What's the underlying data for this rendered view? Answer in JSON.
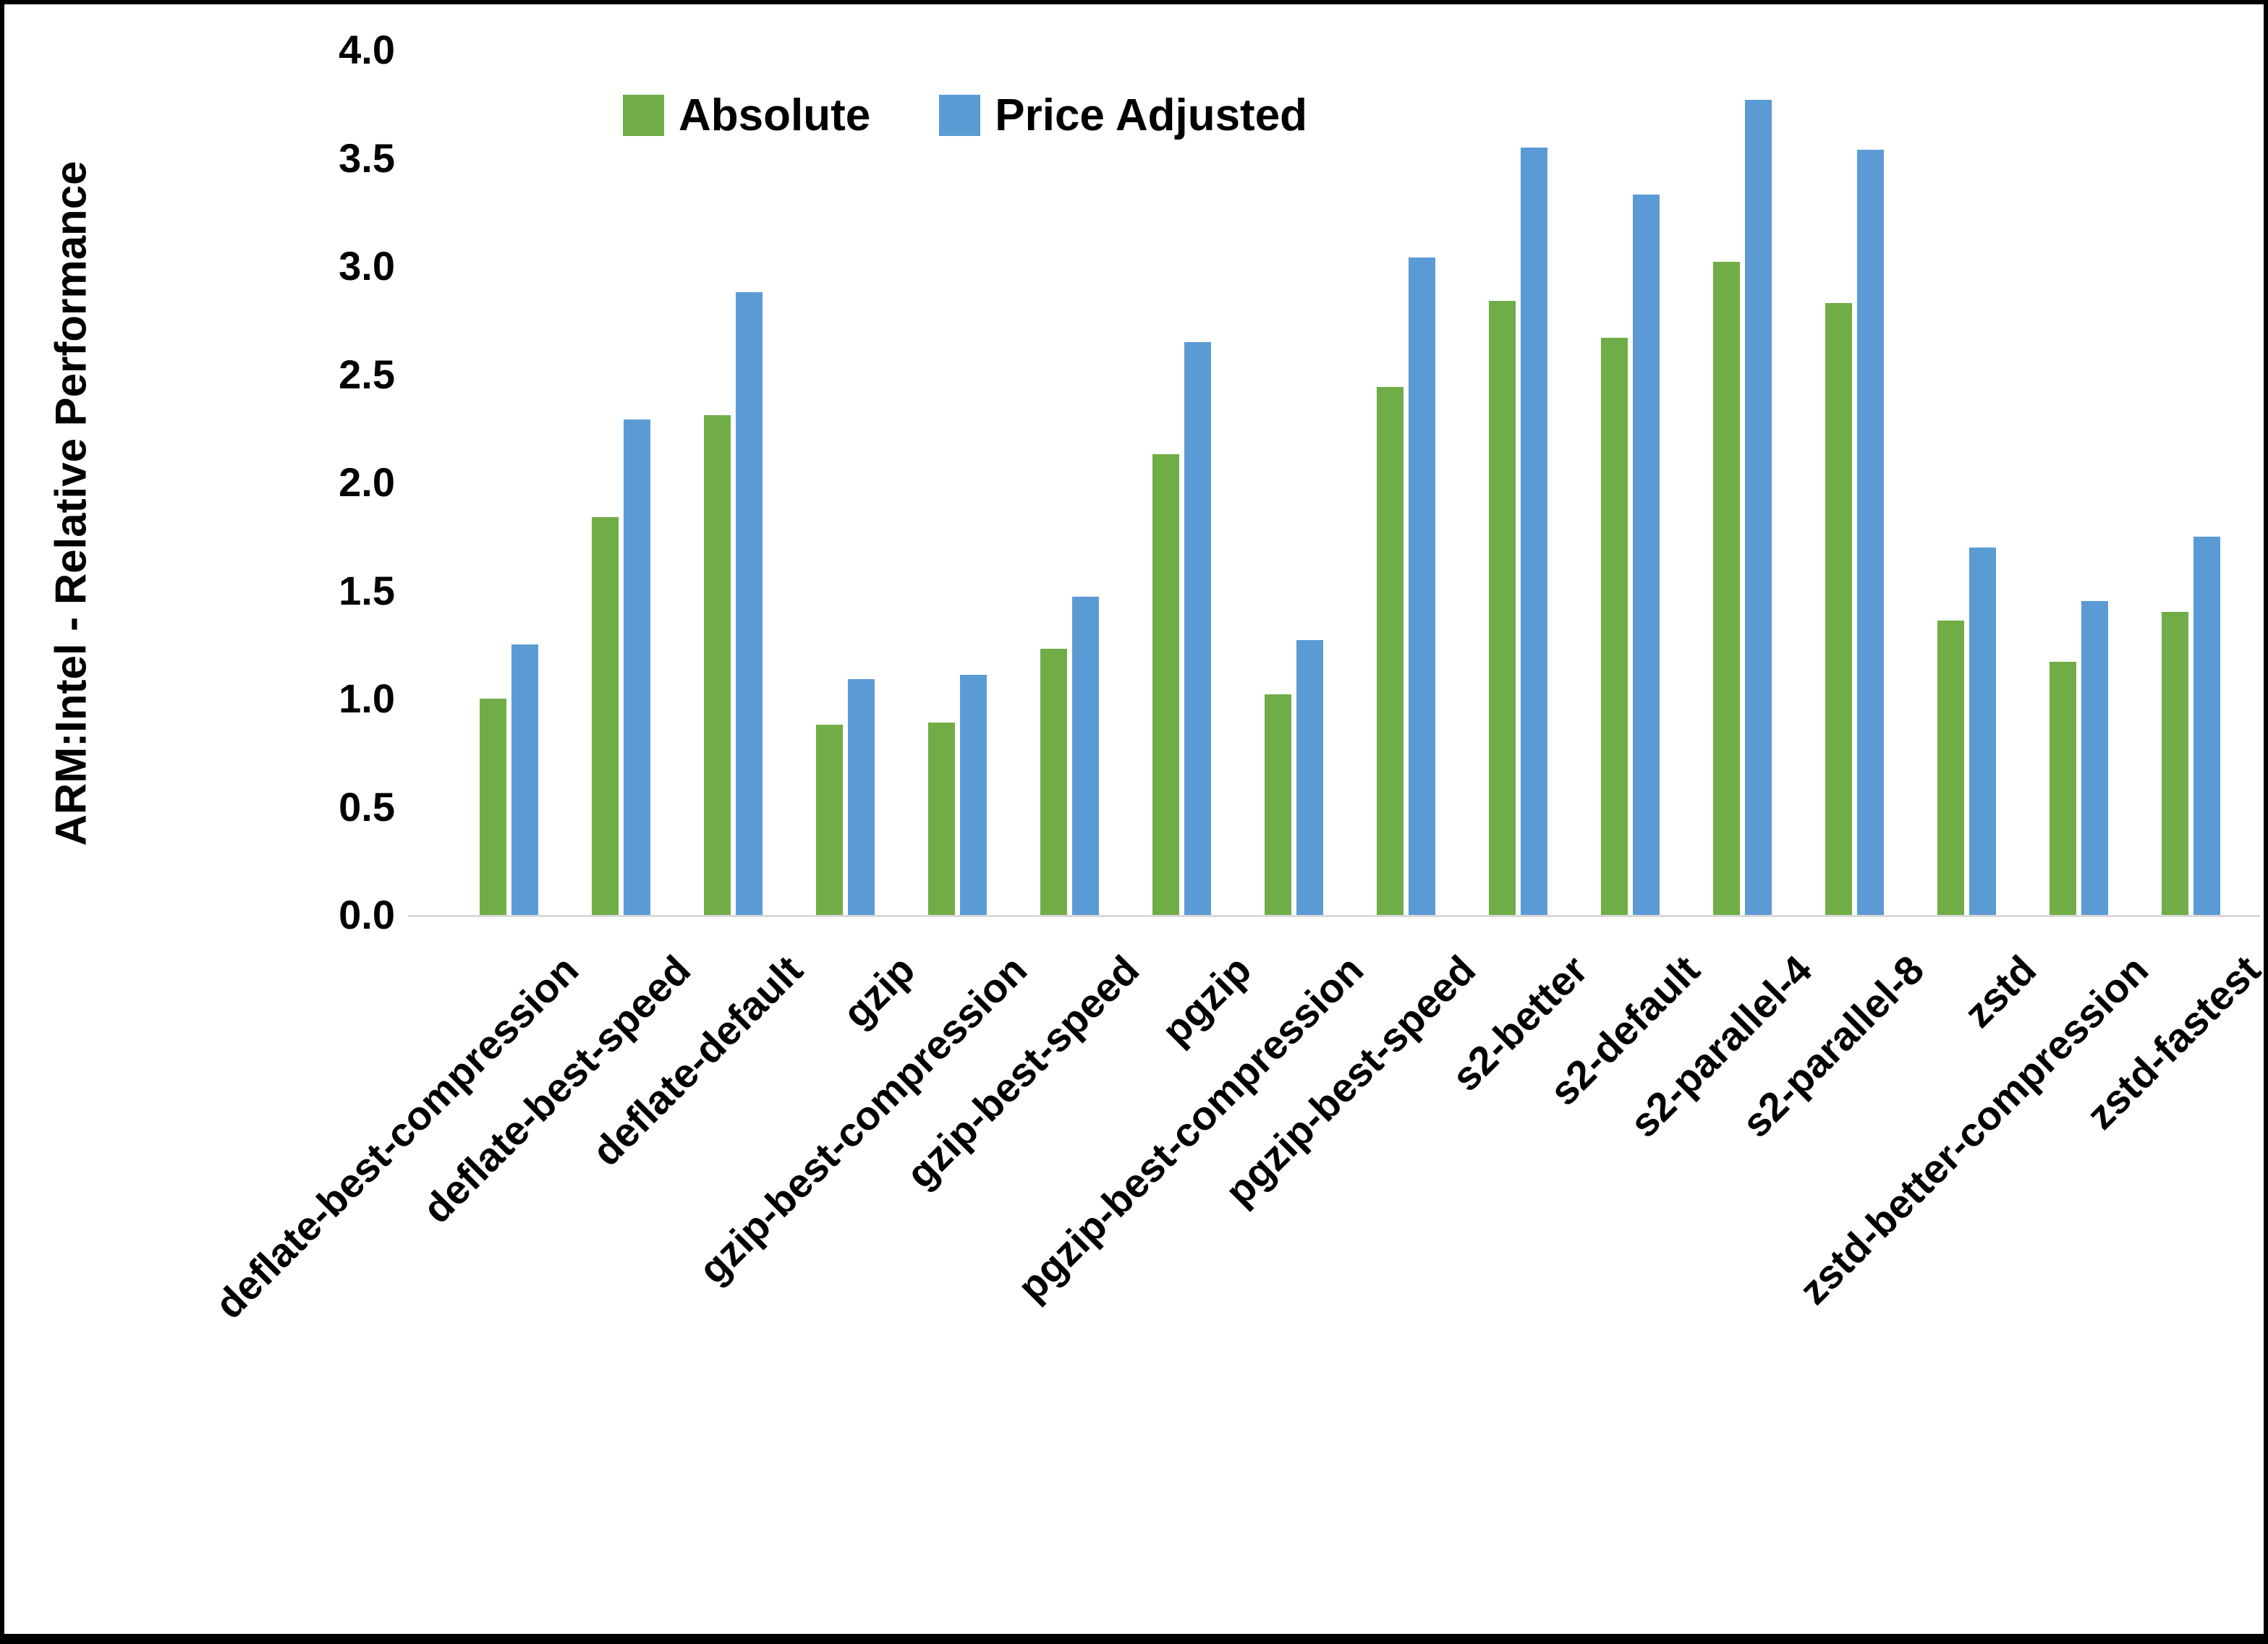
{
  "colors": {
    "absolute_series": "#70AD47",
    "price_adjusted_series": "#5B9BD5",
    "axis_line": "#D9D9D9",
    "text": "#000000",
    "background": "#FFFFFF",
    "frame_border": "#000000"
  },
  "chart_data": {
    "type": "bar",
    "title": "",
    "xlabel": "",
    "ylabel": "ARM:Intel - Relative Performance",
    "ylim": [
      0.0,
      4.0
    ],
    "grid": false,
    "legend_position": "top-center",
    "ytick_labels": [
      "0.0",
      "0.5",
      "1.0",
      "1.5",
      "2.0",
      "2.5",
      "3.0",
      "3.5",
      "4.0"
    ],
    "yticks": [
      0.0,
      0.5,
      1.0,
      1.5,
      2.0,
      2.5,
      3.0,
      3.5,
      4.0
    ],
    "categories": [
      "deflate-best-compression",
      "deflate-best-speed",
      "deflate-default",
      "gzip",
      "gzip-best-compression",
      "gzip-best-speed",
      "pgzip",
      "pgzip-best-compression",
      "pgzip-best-speed",
      "s2-better",
      "s2-default",
      "s2-parallel-4",
      "s2-parallel-8",
      "zstd",
      "zstd-better-compression",
      "zstd-fastest"
    ],
    "series": [
      {
        "name": "Absolute",
        "color": "#70AD47",
        "values": [
          1.0,
          1.84,
          2.31,
          0.88,
          0.89,
          1.23,
          2.13,
          1.02,
          2.44,
          2.84,
          2.67,
          3.02,
          2.83,
          1.36,
          1.17,
          1.4
        ]
      },
      {
        "name": "Price Adjusted",
        "color": "#5B9BD5",
        "values": [
          1.25,
          2.29,
          2.88,
          1.09,
          1.11,
          1.47,
          2.65,
          1.27,
          3.04,
          3.55,
          3.33,
          3.77,
          3.54,
          1.7,
          1.45,
          1.75
        ]
      }
    ]
  }
}
